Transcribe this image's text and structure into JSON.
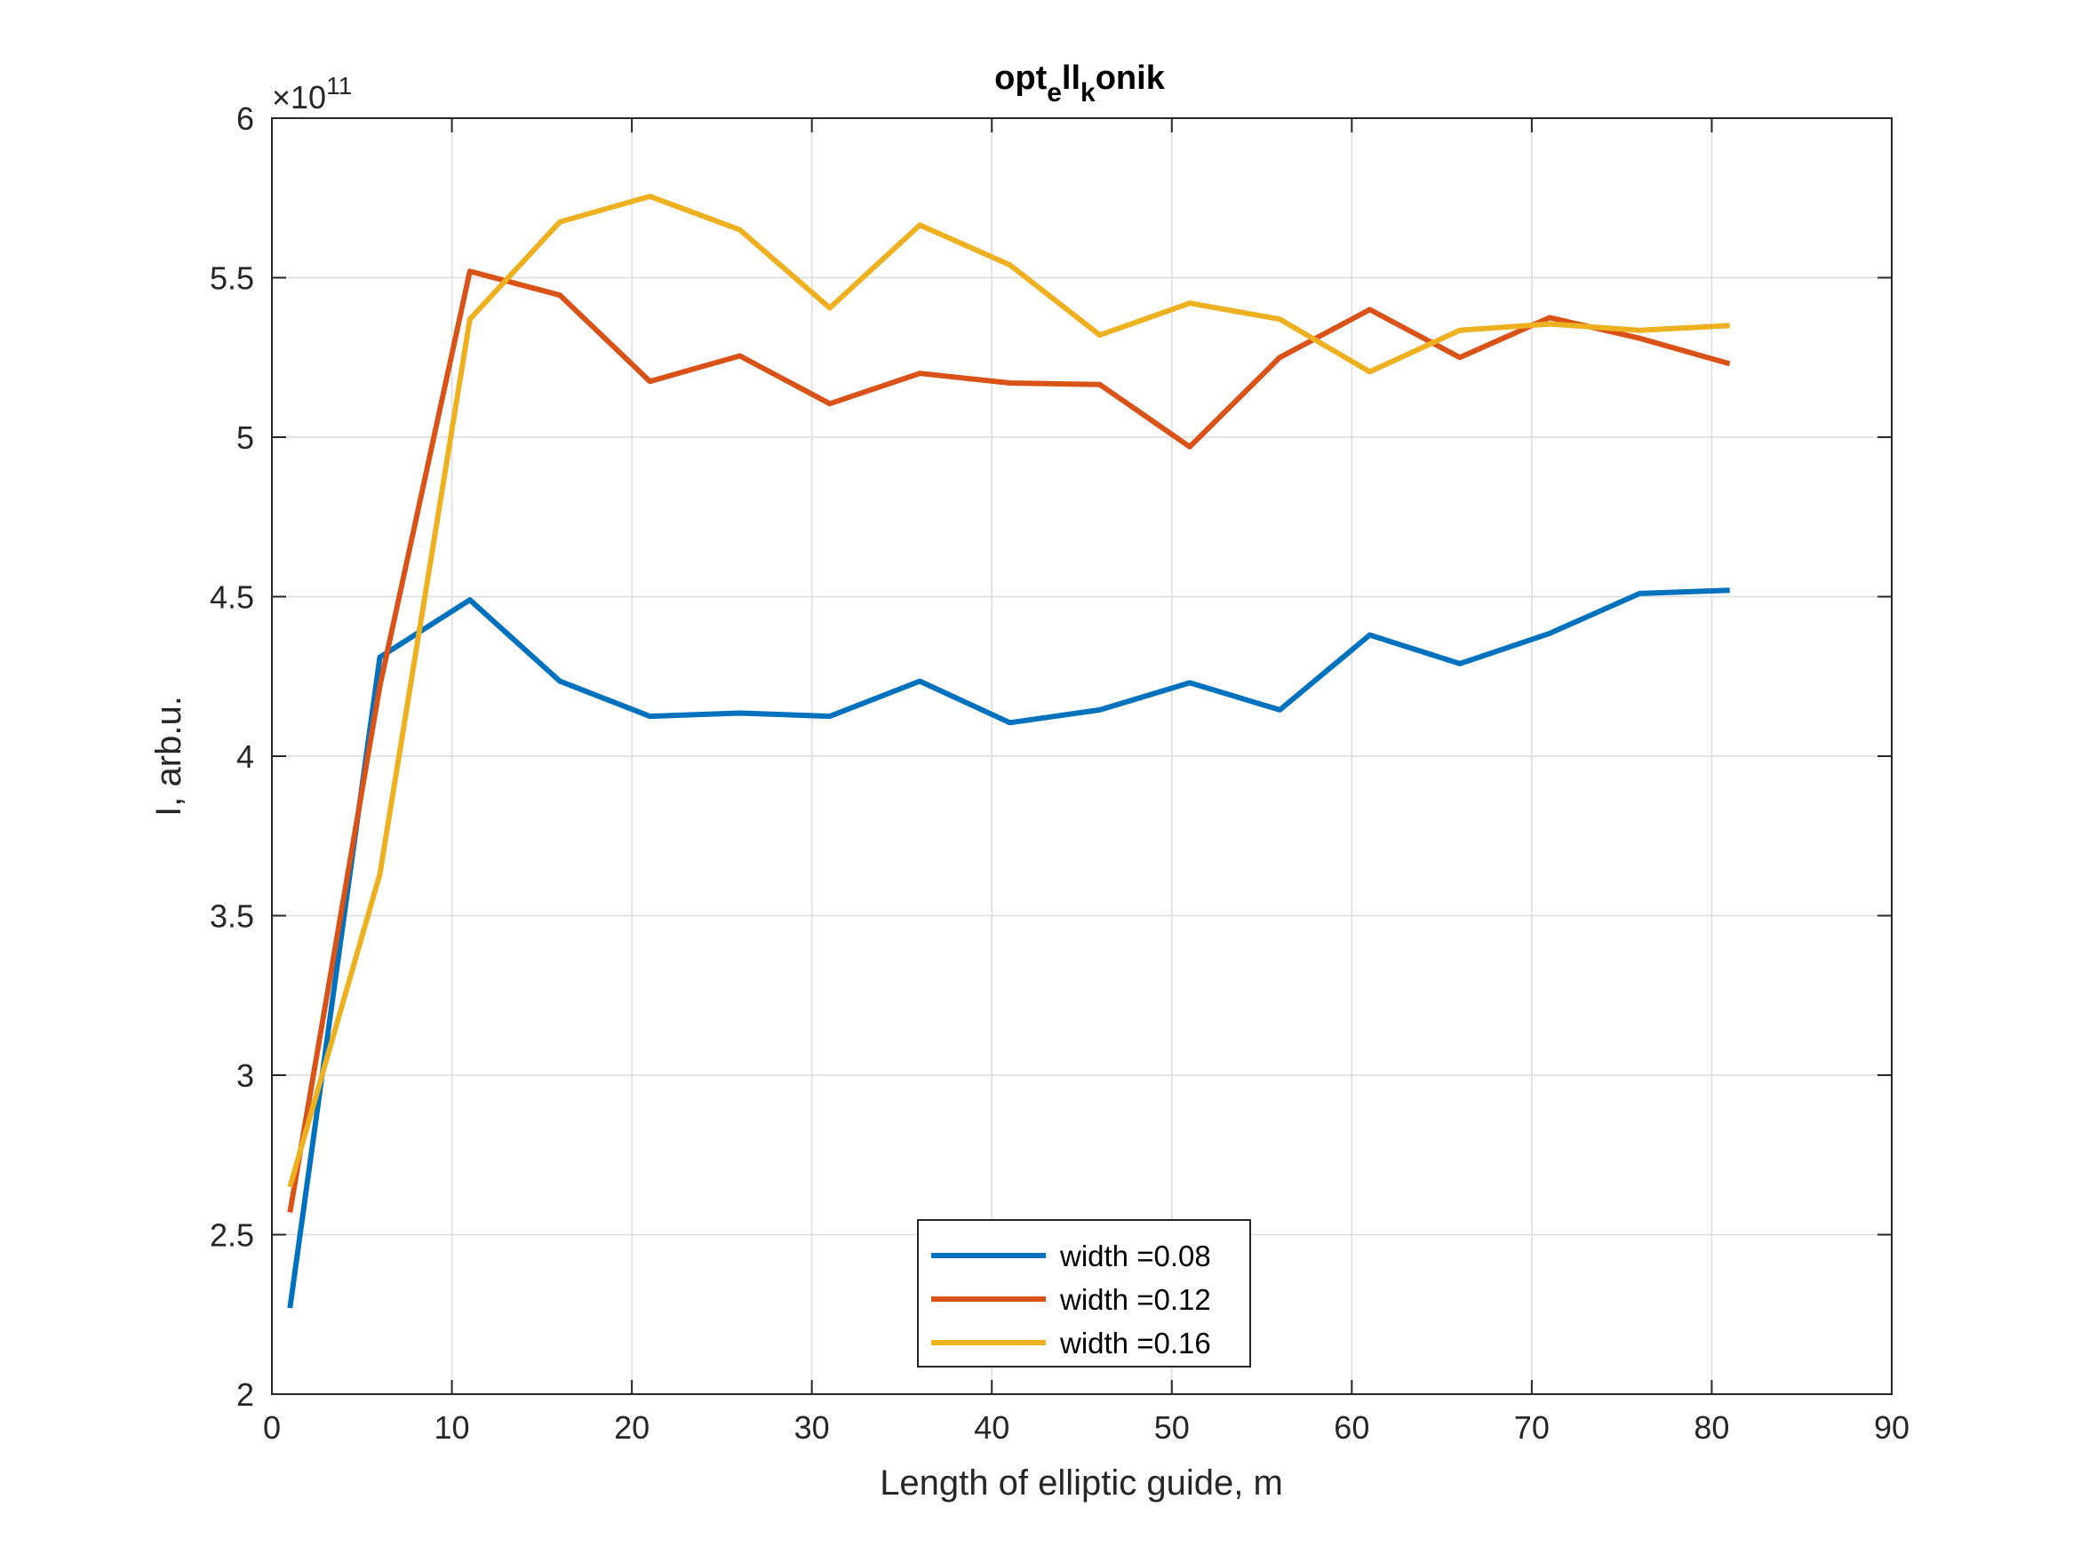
{
  "chart_data": {
    "type": "line",
    "title": {
      "base": "opt",
      "sub1": "e",
      "mid": "ll",
      "sub2": "k",
      "end": "onik"
    },
    "xlabel": "Length of elliptic guide, m",
    "ylabel": "I, arb.u.",
    "y_exponent": {
      "prefix": "×10",
      "power": "11"
    },
    "xlim": [
      0,
      90
    ],
    "ylim": [
      2,
      6
    ],
    "x_ticks": [
      0,
      10,
      20,
      30,
      40,
      50,
      60,
      70,
      80,
      90
    ],
    "y_ticks": [
      "2",
      "2.5",
      "3",
      "3.5",
      "4",
      "4.5",
      "5",
      "5.5",
      "6"
    ],
    "grid": true,
    "legend_position": "bottom-center",
    "x": [
      1,
      6,
      11,
      16,
      21,
      26,
      31,
      36,
      41,
      46,
      51,
      56,
      61,
      66,
      71,
      76,
      81
    ],
    "series": [
      {
        "name": "width =0.08",
        "color": "#0072BD",
        "values": [
          2.27,
          4.31,
          4.49,
          4.235,
          4.125,
          4.135,
          4.125,
          4.235,
          4.105,
          4.145,
          4.23,
          4.145,
          4.38,
          4.29,
          4.385,
          4.51,
          4.52
        ]
      },
      {
        "name": "width =0.12",
        "color": "#D95319",
        "values": [
          2.57,
          4.22,
          5.52,
          5.445,
          5.175,
          5.255,
          5.105,
          5.2,
          5.17,
          5.165,
          4.97,
          5.25,
          5.4,
          5.25,
          5.375,
          5.31,
          5.23
        ]
      },
      {
        "name": "width =0.16",
        "color": "#EDB120",
        "values": [
          2.65,
          3.63,
          5.37,
          5.675,
          5.755,
          5.65,
          5.405,
          5.665,
          5.54,
          5.32,
          5.42,
          5.37,
          5.205,
          5.335,
          5.355,
          5.335,
          5.35
        ]
      }
    ]
  }
}
